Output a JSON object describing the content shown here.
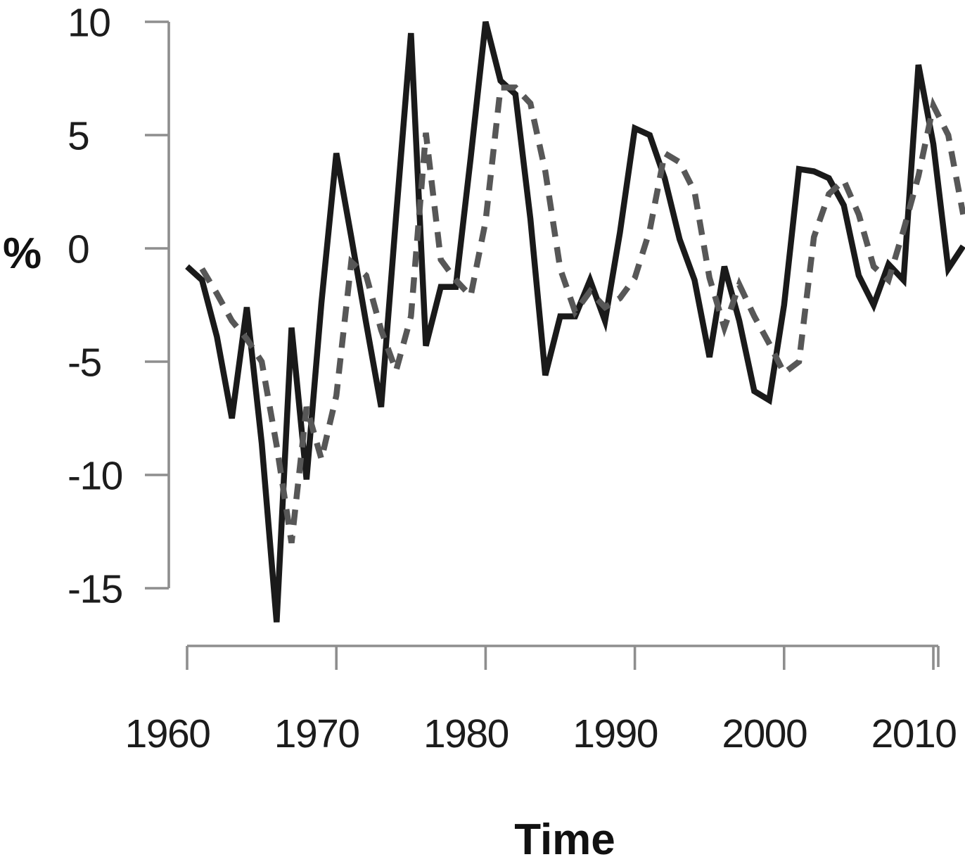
{
  "figure": {
    "background": "#ffffff",
    "axis_color": "#8e8e8e",
    "text_color": "#1c1c1c"
  },
  "chart_data": {
    "type": "line",
    "title": "",
    "xlabel": "Time",
    "ylabel": "%",
    "grid": false,
    "legend_position": "none",
    "x_ticks": [
      1960,
      1970,
      1980,
      1990,
      2000,
      2010
    ],
    "y_ticks": [
      10,
      5,
      0,
      -5,
      -10,
      -15
    ],
    "xlim": [
      1960,
      2012.4
    ],
    "ylim": [
      -16.5,
      10.5
    ],
    "series": [
      {
        "name": "solid line",
        "style": "solid",
        "color": "#1a1a1a",
        "points": [
          [
            1960,
            -0.8
          ],
          [
            1961,
            -1.4
          ],
          [
            1962,
            -3.9
          ],
          [
            1963,
            -7.5
          ],
          [
            1964,
            -2.6
          ],
          [
            1965,
            -8.6
          ],
          [
            1966,
            -16.5
          ],
          [
            1967,
            -3.5
          ],
          [
            1968,
            -10.2
          ],
          [
            1969,
            -2.4
          ],
          [
            1970,
            4.2
          ],
          [
            1971,
            0.5
          ],
          [
            1972,
            -3.3
          ],
          [
            1973,
            -7.0
          ],
          [
            1974,
            1.4
          ],
          [
            1975,
            9.5
          ],
          [
            1976,
            -4.3
          ],
          [
            1977,
            -1.7
          ],
          [
            1978,
            -1.7
          ],
          [
            1979,
            4.0
          ],
          [
            1980,
            10.0
          ],
          [
            1981,
            7.4
          ],
          [
            1982,
            6.8
          ],
          [
            1983,
            1.3
          ],
          [
            1984,
            -5.6
          ],
          [
            1985,
            -3.0
          ],
          [
            1986,
            -3.0
          ],
          [
            1987,
            -1.4
          ],
          [
            1988,
            -3.2
          ],
          [
            1989,
            0.7
          ],
          [
            1990,
            5.3
          ],
          [
            1991,
            5.0
          ],
          [
            1992,
            3.1
          ],
          [
            1993,
            0.4
          ],
          [
            1994,
            -1.4
          ],
          [
            1995,
            -4.8
          ],
          [
            1996,
            -0.8
          ],
          [
            1997,
            -3.2
          ],
          [
            1998,
            -6.3
          ],
          [
            1999,
            -6.7
          ],
          [
            2000,
            -2.5
          ],
          [
            2001,
            3.5
          ],
          [
            2002,
            3.4
          ],
          [
            2003,
            3.1
          ],
          [
            2004,
            1.9
          ],
          [
            2005,
            -1.2
          ],
          [
            2006,
            -2.5
          ],
          [
            2007,
            -0.7
          ],
          [
            2008,
            -1.4
          ],
          [
            2009,
            8.1
          ],
          [
            2010,
            4.6
          ],
          [
            2011,
            -0.9
          ],
          [
            2012,
            0.1
          ]
        ]
      },
      {
        "name": "dashed line",
        "style": "dashed",
        "color": "#575757",
        "points": [
          [
            1961,
            -0.9
          ],
          [
            1962,
            -2.0
          ],
          [
            1963,
            -3.2
          ],
          [
            1964,
            -4.0
          ],
          [
            1965,
            -5.0
          ],
          [
            1966,
            -8.7
          ],
          [
            1967,
            -13.0
          ],
          [
            1968,
            -7.0
          ],
          [
            1969,
            -9.3
          ],
          [
            1970,
            -6.5
          ],
          [
            1971,
            -0.6
          ],
          [
            1972,
            -1.2
          ],
          [
            1973,
            -3.6
          ],
          [
            1974,
            -5.4
          ],
          [
            1975,
            -3.0
          ],
          [
            1976,
            5.1
          ],
          [
            1977,
            -0.5
          ],
          [
            1978,
            -1.4
          ],
          [
            1979,
            -2.1
          ],
          [
            1980,
            1.2
          ],
          [
            1981,
            7.1
          ],
          [
            1982,
            7.1
          ],
          [
            1983,
            6.4
          ],
          [
            1984,
            3.4
          ],
          [
            1985,
            -0.9
          ],
          [
            1986,
            -2.8
          ],
          [
            1987,
            -1.9
          ],
          [
            1988,
            -2.6
          ],
          [
            1989,
            -2.2
          ],
          [
            1990,
            -1.3
          ],
          [
            1991,
            0.8
          ],
          [
            1992,
            4.2
          ],
          [
            1993,
            3.8
          ],
          [
            1994,
            2.5
          ],
          [
            1995,
            -1.3
          ],
          [
            1996,
            -3.5
          ],
          [
            1997,
            -1.6
          ],
          [
            1998,
            -3.0
          ],
          [
            1999,
            -4.2
          ],
          [
            2000,
            -5.5
          ],
          [
            2001,
            -5.0
          ],
          [
            2002,
            0.5
          ],
          [
            2003,
            2.4
          ],
          [
            2004,
            3.0
          ],
          [
            2005,
            1.5
          ],
          [
            2006,
            -0.8
          ],
          [
            2007,
            -1.4
          ],
          [
            2008,
            0.8
          ],
          [
            2009,
            3.2
          ],
          [
            2010,
            6.3
          ],
          [
            2011,
            5.0
          ],
          [
            2012,
            1.5
          ]
        ]
      }
    ]
  }
}
